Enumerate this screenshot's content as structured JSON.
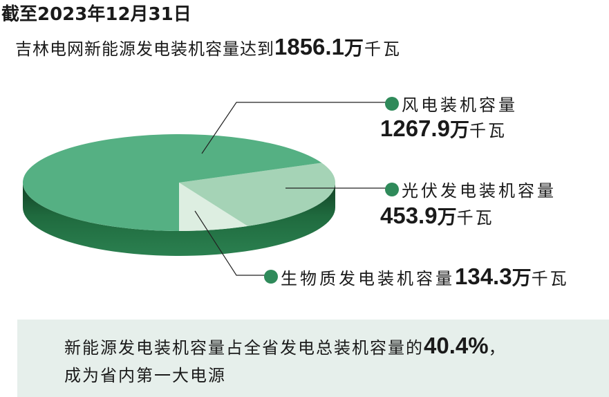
{
  "header": {
    "title": "截至2023年12月31日",
    "subtitle_prefix": "吉林电网新能源发电装机容量达到",
    "subtitle_value": "1856.1",
    "subtitle_wan": "万",
    "subtitle_unit": "千瓦"
  },
  "chart_data": {
    "type": "pie",
    "style": "3d",
    "total": 1856.1,
    "unit": "万千瓦",
    "slices": [
      {
        "label": "风电装机容量",
        "value": 1267.9,
        "color": "#55b083"
      },
      {
        "label": "光伏发电装机容量",
        "value": 453.9,
        "color": "#a5d3b6"
      },
      {
        "label": "生物质发电装机容量",
        "value": 134.3,
        "color": "#ddeee1"
      }
    ],
    "side_color": "#1f6a3e",
    "side_color_dark": "#123f24",
    "marker_color": "#2f8a5a"
  },
  "labels": {
    "wind": {
      "name": "风电装机容量",
      "value": "1267.9",
      "wan": "万",
      "unit": "千瓦"
    },
    "pv": {
      "name": "光伏发电装机容量",
      "value": "453.9",
      "wan": "万",
      "unit": "千瓦"
    },
    "bio": {
      "name": "生物质发电装机容量",
      "value": "134.3",
      "wan": "万",
      "unit": "千瓦"
    }
  },
  "footer": {
    "line1_prefix": "新能源发电装机容量占全省发电总装机容量的",
    "line1_value": "40.4%",
    "line1_suffix": "，",
    "line2": "成为省内第一大电源"
  }
}
